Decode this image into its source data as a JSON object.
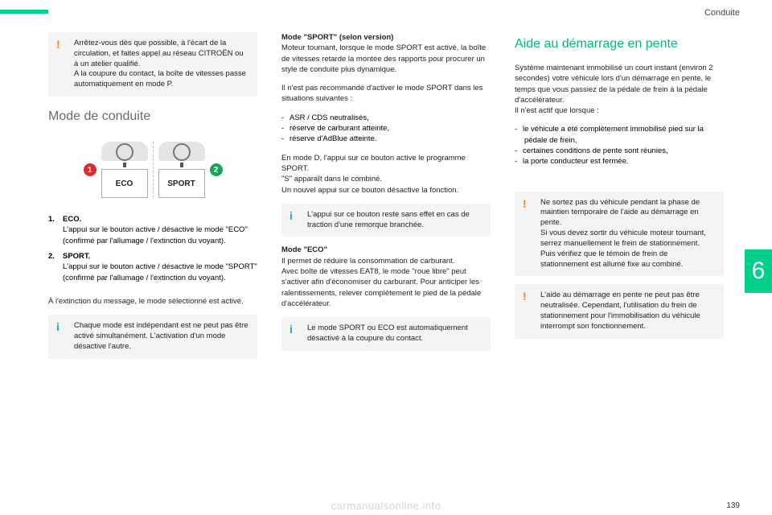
{
  "header": {
    "section_title": "Conduite"
  },
  "col1": {
    "warn1": "Arrêtez-vous dès que possible, à l'écart de la circulation, et faites appel au réseau CITROËN ou à un atelier qualifié.\nA la coupure du contact, la boîte de vitesses passe automatiquement en mode P.",
    "heading": "Mode de conduite",
    "eco_label": "ECO",
    "sport_label": "SPORT",
    "marker1": "1",
    "marker2": "2",
    "list": [
      {
        "num": "1.",
        "label": "ECO.",
        "desc": "L'appui sur le bouton active / désactive le mode \"ECO\" (confirmé par l'allumage / l'extinction du voyant)."
      },
      {
        "num": "2.",
        "label": "SPORT.",
        "desc": "L'appui sur le bouton active / désactive le mode \"SPORT\" (confirmé par l'allumage / l'extinction du voyant)."
      }
    ],
    "afterlist": "À l'extinction du message, le mode sélectionné est activé.",
    "info1": "Chaque mode est indépendant est ne peut pas être activé simultanément. L'activation d'un mode désactive l'autre."
  },
  "col2": {
    "sport_title": "Mode \"SPORT\" (selon version)",
    "sport_body": "Moteur tournant, lorsque le mode SPORT est activé, la boîte de vitesses retarde la montée des rapports pour procurer un style de conduite plus dynamique.",
    "not_recommended_intro": "Il n'est pas recommandé d'activer le mode SPORT dans les situations suivantes :",
    "not_recommended_items": [
      "ASR / CDS neutralisés,",
      "réserve de carburant atteinte,",
      "réserve d'AdBlue atteinte."
    ],
    "mode_d": "En mode D, l'appui sur ce bouton active le programme SPORT.\n\"S\" apparaît dans le combiné.\nUn nouvel appui sur ce bouton désactive la fonction.",
    "info2": "L'appui sur ce bouton reste sans effet en cas de traction d'une remorque branchée.",
    "eco_title": "Mode \"ECO\"",
    "eco_body": "Il permet de réduire la consommation de carburant.\nAvec boîte de vitesses EAT8, le mode \"roue libre\" peut s'activer afin d'économiser du carburant. Pour anticiper les ralentissements, relever complètement le pied de la pédale d'accélérateur.",
    "info3": "Le mode SPORT ou ECO est automatiquement désactivé à la coupure du contact."
  },
  "col3": {
    "heading": "Aide au démarrage en pente",
    "body1": "Système maintenant immobilisé un court instant (environ 2 secondes) votre véhicule lors d'un démarrage en pente, le temps que vous passiez de la pédale de frein à la pédale d'accélérateur.\nIl n'est actif que lorsque :",
    "conditions": [
      "le véhicule a été complètement immobilisé pied sur la pédale de frein,",
      "certaines conditions de pente sont réunies,",
      "la porte conducteur est fermée."
    ],
    "warn2": "Ne sortez pas du véhicule pendant la phase de maintien temporaire de l'aide au démarrage en pente.\nSi vous devez sortir du véhicule moteur tournant, serrez manuellement le frein de stationnement. Puis vérifiez que le témoin de frein de stationnement est allumé fixe au combiné.",
    "warn3": "L'aide au démarrage en pente ne peut pas être neutralisée. Cependant, l'utilisation du frein de stationnement pour l'immobilisation du véhicule interrompt son fonctionnement."
  },
  "side_tab": "6",
  "page_number": "139",
  "watermark": "carmanualsonline.info"
}
